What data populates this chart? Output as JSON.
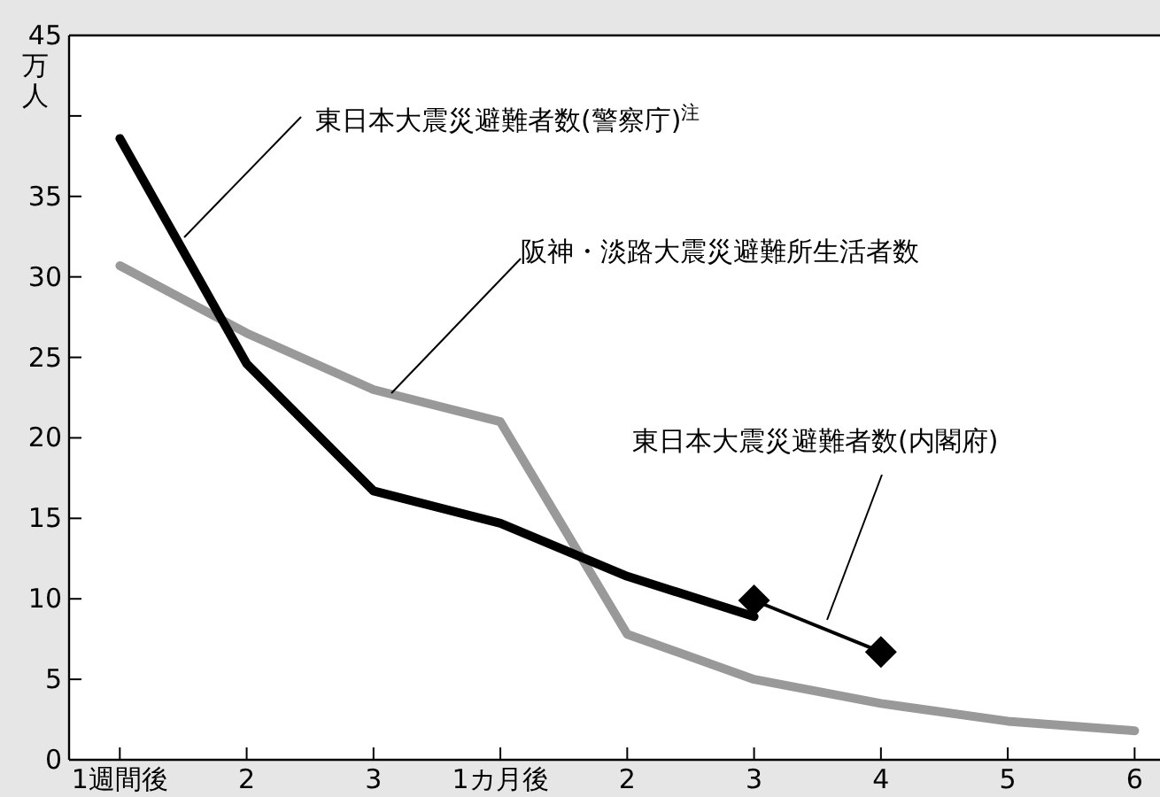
{
  "chart_data": {
    "type": "line",
    "ylabel": "万人",
    "categories": [
      "1週間後",
      "2",
      "3",
      "1カ月後",
      "2",
      "3",
      "4",
      "5",
      "6"
    ],
    "ylim": [
      0,
      45
    ],
    "yticks": [
      0,
      5,
      10,
      15,
      20,
      25,
      30,
      35,
      {
        "value": 40,
        "label": null
      },
      45
    ],
    "grid": false,
    "series": [
      {
        "name": "東日本大震災避難者数(警察庁)$^{注}$",
        "color": "#000000",
        "marker": "none",
        "values": [
          38.6,
          24.6,
          16.7,
          14.7,
          11.4,
          8.9,
          null,
          null,
          null
        ]
      },
      {
        "name": "阪神・淡路大震災避難所生活者数",
        "color": "#999999",
        "marker": "none",
        "values": [
          30.7,
          26.5,
          23.0,
          21.0,
          7.8,
          5.0,
          3.5,
          2.4,
          1.8
        ]
      },
      {
        "name": "東日本大震災避難者数(内閣府)",
        "color": "#000000",
        "marker": "diamond",
        "values": [
          null,
          null,
          null,
          null,
          null,
          9.9,
          6.7,
          null,
          null
        ]
      }
    ]
  }
}
